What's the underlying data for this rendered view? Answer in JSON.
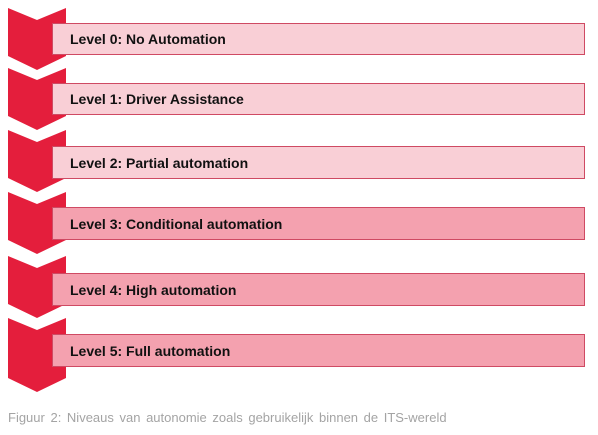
{
  "colors": {
    "chevron": "#e41e3c",
    "box_light": "#f9cfd6",
    "box_dark": "#f4a1af",
    "box_border": "#cf4a63",
    "caption": "#a4a4a4"
  },
  "levels": [
    {
      "label": "Level 0: No Automation",
      "fill": "box_light"
    },
    {
      "label": "Level 1: Driver Assistance",
      "fill": "box_light"
    },
    {
      "label": "Level 2: Partial automation",
      "fill": "box_light"
    },
    {
      "label": "Level 3: Conditional automation",
      "fill": "box_dark"
    },
    {
      "label": "Level 4: High automation",
      "fill": "box_dark"
    },
    {
      "label": "Level 5: Full automation",
      "fill": "box_dark"
    }
  ],
  "caption": "Figuur 2: Niveaus van autonomie zoals gebruikelijk binnen de ITS-wereld"
}
